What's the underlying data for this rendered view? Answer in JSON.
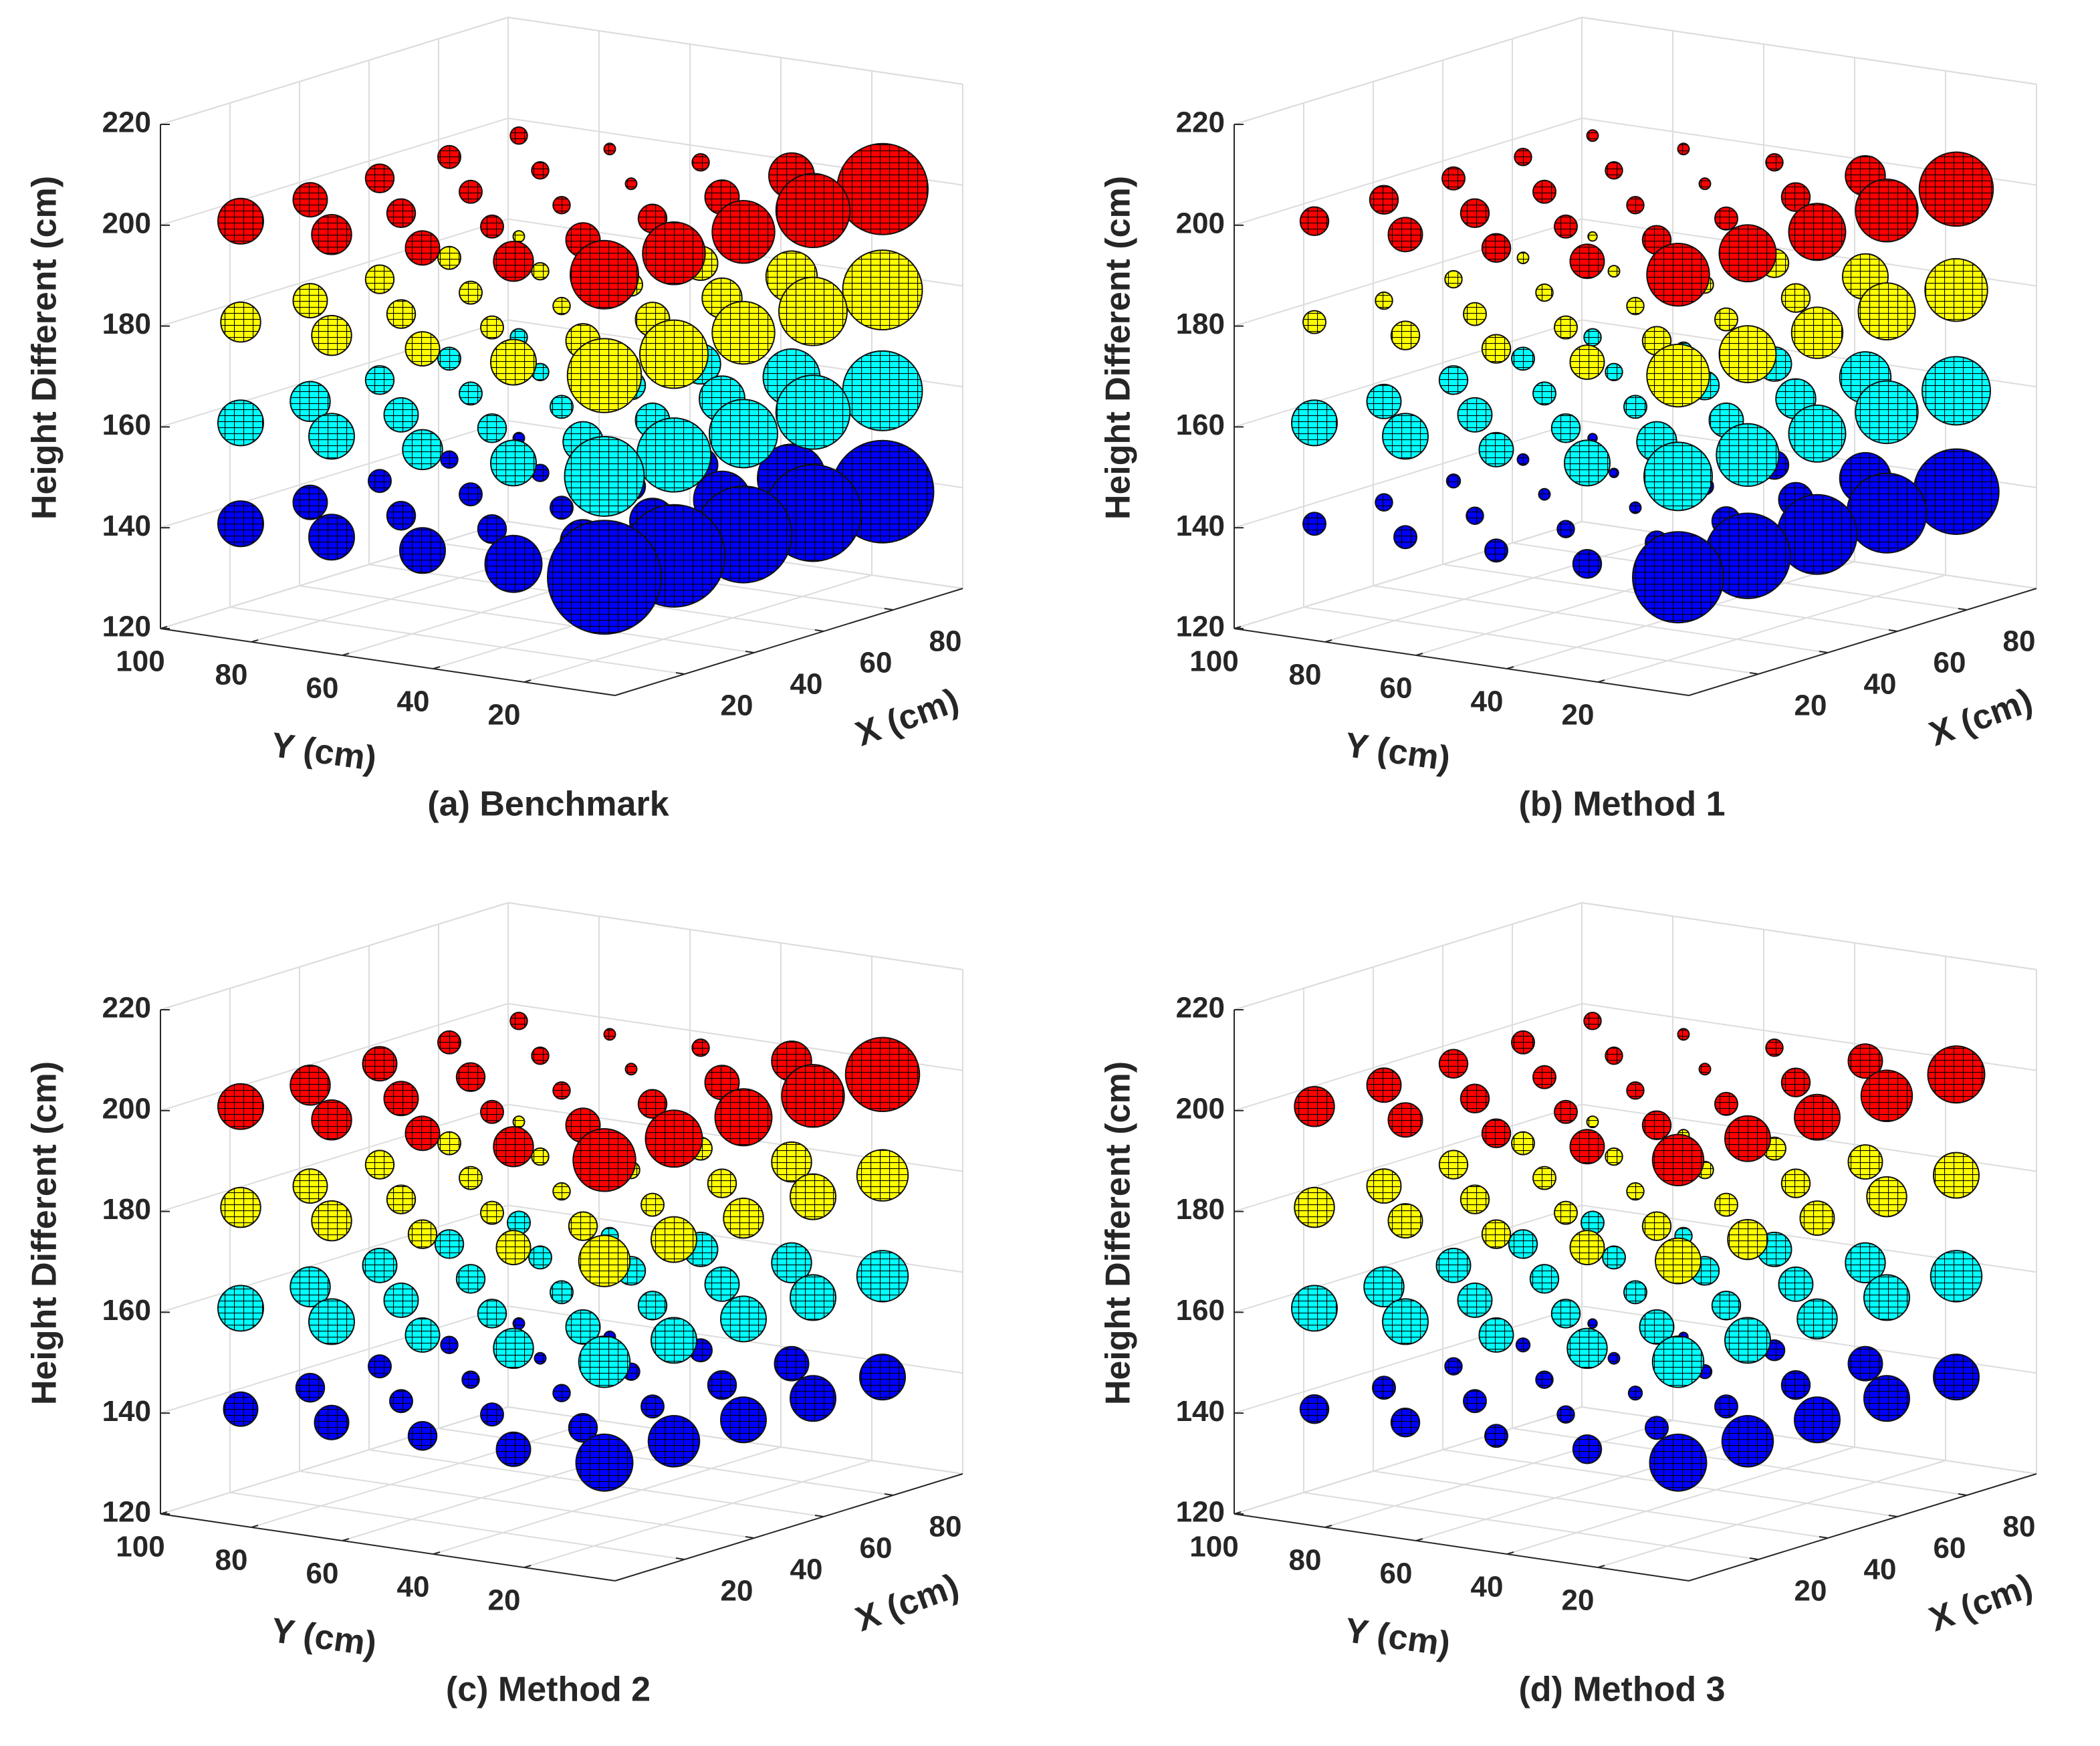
{
  "chart_data": [
    {
      "type": "scatter3d",
      "title": "(a) Benchmark",
      "xlabel": "X (cm)",
      "ylabel": "Y (cm)",
      "zlabel": "Height Different (cm)",
      "x": [
        10,
        30,
        50,
        70,
        90
      ],
      "y": [
        10,
        30,
        50,
        70,
        90
      ],
      "xlim": [
        0,
        100
      ],
      "ylim": [
        0,
        100
      ],
      "zlim": [
        120,
        220
      ],
      "xticks": [
        20,
        40,
        60,
        80
      ],
      "yticks": [
        20,
        40,
        60,
        80,
        100
      ],
      "zticks": [
        120,
        140,
        160,
        180,
        200,
        220
      ],
      "grid": true,
      "series": [
        {
          "color": "#0000ff",
          "z": 140,
          "sizes": [
            [
              10,
              9,
              8.5,
              8.5,
              9
            ],
            [
              5,
              4,
              4,
              5,
              6
            ],
            [
              4,
              2.5,
              2,
              2.5,
              3
            ],
            [
              4,
              2.5,
              2,
              1.5,
              1.5
            ],
            [
              4,
              3,
              2,
              1.5,
              1
            ]
          ]
        },
        {
          "color": "#00ffff",
          "z": 160,
          "sizes": [
            [
              7,
              6.5,
              6,
              6.5,
              7
            ],
            [
              4,
              3.5,
              3,
              4,
              5
            ],
            [
              3.5,
              2.5,
              2,
              2.5,
              3.5
            ],
            [
              4,
              3,
              2,
              1.5,
              1.5
            ],
            [
              4,
              3.5,
              2.5,
              2,
              1.5
            ]
          ]
        },
        {
          "color": "#ffff00",
          "z": 180,
          "sizes": [
            [
              6.5,
              6,
              5.5,
              6,
              7
            ],
            [
              4,
              3,
              3,
              3.5,
              4.5
            ],
            [
              3,
              2,
              1.5,
              2,
              3
            ],
            [
              3.5,
              2.5,
              2,
              1.5,
              1
            ],
            [
              3.5,
              3,
              2.5,
              2,
              1
            ]
          ]
        },
        {
          "color": "#ff0000",
          "z": 200,
          "sizes": [
            [
              6,
              5.5,
              5.5,
              6.5,
              8
            ],
            [
              3.5,
              3,
              2.5,
              3,
              4
            ],
            [
              3,
              2,
              1.5,
              1,
              1.5
            ],
            [
              3.5,
              2.5,
              2,
              1.5,
              1
            ],
            [
              4,
              3,
              2.5,
              2,
              1.5
            ]
          ]
        }
      ]
    },
    {
      "type": "scatter3d",
      "title": "(b) Method 1",
      "xlabel": "X (cm)",
      "ylabel": "Y (cm)",
      "zlabel": "Height Different (cm)",
      "x": [
        10,
        30,
        50,
        70,
        90
      ],
      "y": [
        10,
        30,
        50,
        70,
        90
      ],
      "xlim": [
        0,
        100
      ],
      "ylim": [
        0,
        100
      ],
      "zlim": [
        120,
        220
      ],
      "xticks": [
        20,
        40,
        60,
        80
      ],
      "yticks": [
        20,
        40,
        60,
        80,
        100
      ],
      "zticks": [
        120,
        140,
        160,
        180,
        200,
        220
      ],
      "grid": true,
      "series": [
        {
          "color": "#0000ff",
          "z": 140,
          "sizes": [
            [
              8,
              7.5,
              7,
              7,
              7.5
            ],
            [
              2.5,
              2,
              2.5,
              3,
              4.5
            ],
            [
              2,
              1.5,
              1,
              1.5,
              2.5
            ],
            [
              2,
              1.5,
              1,
              0.8,
              0.8
            ],
            [
              2,
              1.5,
              1.2,
              1,
              0.8
            ]
          ]
        },
        {
          "color": "#00ffff",
          "z": 160,
          "sizes": [
            [
              6,
              5.5,
              5,
              5.5,
              6
            ],
            [
              4,
              3.5,
              3,
              3.5,
              4.5
            ],
            [
              3,
              2.5,
              2,
              2.5,
              3
            ],
            [
              4,
              3,
              2,
              1.5,
              1.5
            ],
            [
              4,
              3,
              2.5,
              2,
              1.5
            ]
          ]
        },
        {
          "color": "#ffff00",
          "z": 180,
          "sizes": [
            [
              5.5,
              5,
              4.5,
              5,
              5.5
            ],
            [
              3,
              2.5,
              2,
              2.5,
              4
            ],
            [
              2.5,
              2,
              1.5,
              1.5,
              2.5
            ],
            [
              2.5,
              2,
              1.5,
              1,
              0.8
            ],
            [
              2,
              1.5,
              1.5,
              1,
              0.8
            ]
          ]
        },
        {
          "color": "#ff0000",
          "z": 200,
          "sizes": [
            [
              5.5,
              5,
              5,
              5.5,
              6.5
            ],
            [
              3,
              2.5,
              2,
              2.5,
              3.5
            ],
            [
              2.5,
              2,
              1.5,
              1,
              1.5
            ],
            [
              3,
              2.5,
              2,
              1.5,
              1
            ],
            [
              2.5,
              2.5,
              2,
              1.5,
              1
            ]
          ]
        }
      ]
    },
    {
      "type": "scatter3d",
      "title": "(c) Method 2",
      "xlabel": "X (cm)",
      "ylabel": "Y (cm)",
      "zlabel": "Height Different (cm)",
      "x": [
        10,
        30,
        50,
        70,
        90
      ],
      "y": [
        10,
        30,
        50,
        70,
        90
      ],
      "xlim": [
        0,
        100
      ],
      "ylim": [
        0,
        100
      ],
      "zlim": [
        120,
        220
      ],
      "xticks": [
        20,
        40,
        60,
        80
      ],
      "yticks": [
        20,
        40,
        60,
        80,
        100
      ],
      "zticks": [
        120,
        140,
        160,
        180,
        200,
        220
      ],
      "grid": true,
      "series": [
        {
          "color": "#0000ff",
          "z": 140,
          "sizes": [
            [
              5,
              4.5,
              4,
              4,
              4
            ],
            [
              3,
              2.5,
              2,
              2.5,
              3
            ],
            [
              2.5,
              2,
              1.5,
              1.5,
              2
            ],
            [
              3,
              2,
              1.5,
              1,
              1
            ],
            [
              3,
              2.5,
              2,
              1.5,
              1
            ]
          ]
        },
        {
          "color": "#00ffff",
          "z": 160,
          "sizes": [
            [
              4.5,
              4,
              4,
              4,
              4.5
            ],
            [
              3.5,
              3,
              2.5,
              3,
              3.5
            ],
            [
              3,
              2.5,
              2,
              2.5,
              3
            ],
            [
              4,
              3,
              2.5,
              2,
              1.5
            ],
            [
              4,
              3.5,
              3,
              2.5,
              2
            ]
          ]
        },
        {
          "color": "#ffff00",
          "z": 180,
          "sizes": [
            [
              4.5,
              4,
              3.5,
              4,
              4.5
            ],
            [
              3,
              2.5,
              2,
              2.5,
              3.5
            ],
            [
              2.5,
              2,
              1.5,
              1.5,
              2
            ],
            [
              3.5,
              2.5,
              2,
              1.5,
              1
            ],
            [
              3.5,
              3,
              2.5,
              2,
              1
            ]
          ]
        },
        {
          "color": "#ff0000",
          "z": 200,
          "sizes": [
            [
              5.5,
              5,
              5,
              5.5,
              6.5
            ],
            [
              3.5,
              3,
              2.5,
              3,
              3.5
            ],
            [
              3,
              2,
              1.5,
              1,
              1.5
            ],
            [
              3.5,
              3,
              2.5,
              1.5,
              1
            ],
            [
              4,
              3.5,
              3,
              2,
              1.5
            ]
          ]
        }
      ]
    },
    {
      "type": "scatter3d",
      "title": "(d) Method 3",
      "xlabel": "X (cm)",
      "ylabel": "Y (cm)",
      "zlabel": "Height Different (cm)",
      "x": [
        10,
        30,
        50,
        70,
        90
      ],
      "y": [
        10,
        30,
        50,
        70,
        90
      ],
      "xlim": [
        0,
        100
      ],
      "ylim": [
        0,
        100
      ],
      "zlim": [
        120,
        220
      ],
      "xticks": [
        20,
        40,
        60,
        80
      ],
      "yticks": [
        20,
        40,
        60,
        80,
        100
      ],
      "zticks": [
        120,
        140,
        160,
        180,
        200,
        220
      ],
      "grid": true,
      "series": [
        {
          "color": "#0000ff",
          "z": 140,
          "sizes": [
            [
              5,
              4.5,
              4,
              4,
              4
            ],
            [
              2.5,
              2,
              2,
              2.5,
              3
            ],
            [
              2,
              1.5,
              1.2,
              1.2,
              1.8
            ],
            [
              2.5,
              2,
              1.5,
              1,
              0.8
            ],
            [
              2.5,
              2,
              1.5,
              1.2,
              0.8
            ]
          ]
        },
        {
          "color": "#00ffff",
          "z": 160,
          "sizes": [
            [
              4.5,
              4,
              3.5,
              4,
              4.5
            ],
            [
              3.5,
              3,
              2.5,
              3,
              3.5
            ],
            [
              3,
              2.5,
              2,
              2.5,
              3
            ],
            [
              4,
              3,
              2.5,
              2,
              1.5
            ],
            [
              4,
              3.5,
              3,
              2.5,
              2
            ]
          ]
        },
        {
          "color": "#ffff00",
          "z": 180,
          "sizes": [
            [
              4,
              3.5,
              3,
              3.5,
              4
            ],
            [
              3,
              2.5,
              2,
              2.5,
              3
            ],
            [
              2.5,
              2,
              1.5,
              1.5,
              2
            ],
            [
              3,
              2.5,
              2,
              1.5,
              1
            ],
            [
              3.5,
              3,
              2.5,
              2,
              1
            ]
          ]
        },
        {
          "color": "#ff0000",
          "z": 200,
          "sizes": [
            [
              4.5,
              4,
              4,
              4.5,
              5
            ],
            [
              3,
              2.5,
              2,
              2.5,
              3
            ],
            [
              2.5,
              2,
              1.5,
              1,
              1.5
            ],
            [
              3,
              2.5,
              2,
              1.5,
              1
            ],
            [
              3.5,
              3,
              2.5,
              2,
              1.5
            ]
          ]
        }
      ]
    }
  ]
}
